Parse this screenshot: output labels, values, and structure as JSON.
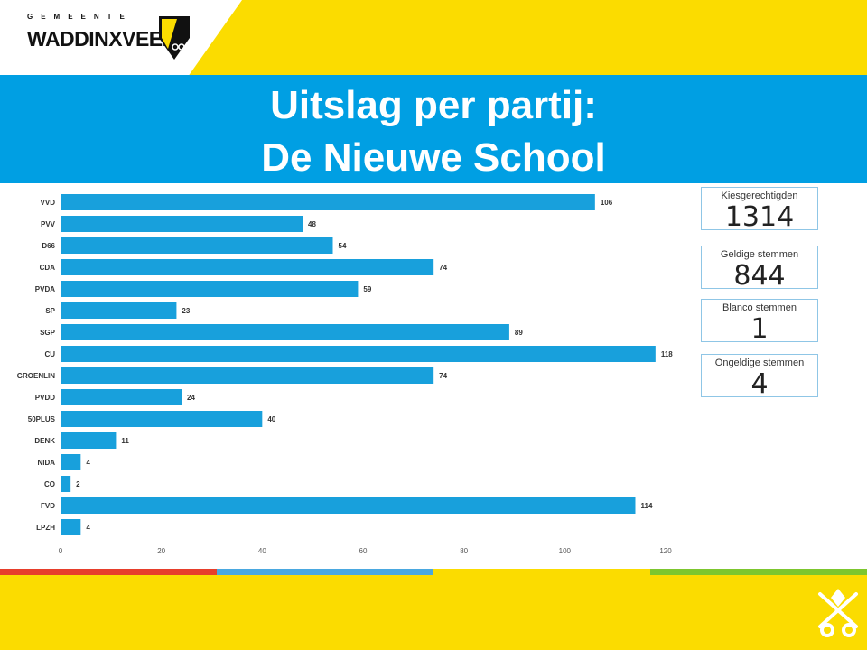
{
  "logo": {
    "top_text": "GEMEENTE",
    "main_text": "WADDINXVEEN"
  },
  "title": {
    "line1": "Uitslag per partij:",
    "line2": "De Nieuwe School"
  },
  "kpis": [
    {
      "label": "Kiesgerechtigden",
      "value": "1314"
    },
    {
      "label": "Geldige stemmen",
      "value": "844"
    },
    {
      "label": "Blanco stemmen",
      "value": "1"
    },
    {
      "label": "Ongeldige stemmen",
      "value": "4"
    }
  ],
  "colors": {
    "yellow": "#fbdc00",
    "blue": "#009fe3",
    "bar": "#18a0dc",
    "stripe_red": "#e73e2b",
    "stripe_blue": "#4aa8e0",
    "stripe_yellow": "#fbdc00",
    "stripe_green": "#7dc62e"
  },
  "chart_data": {
    "type": "bar",
    "orientation": "horizontal",
    "categories": [
      "VVD",
      "PVV",
      "D66",
      "CDA",
      "PVDA",
      "SP",
      "SGP",
      "CU",
      "GROENLIN",
      "PVDD",
      "50PLUS",
      "DENK",
      "NIDA",
      "CO",
      "FVD",
      "LPZH"
    ],
    "values": [
      106,
      48,
      54,
      74,
      59,
      23,
      89,
      118,
      74,
      24,
      40,
      11,
      4,
      2,
      114,
      4
    ],
    "xlim": [
      0,
      120
    ],
    "xticks": [
      0,
      20,
      40,
      60,
      80,
      100,
      120
    ],
    "grid": false
  }
}
